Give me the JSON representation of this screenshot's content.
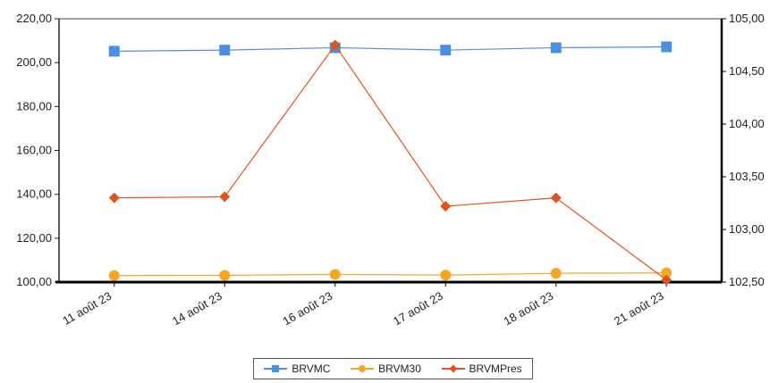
{
  "chart_data": {
    "type": "line",
    "categories": [
      "11 août 23",
      "14 août 23",
      "16 août 23",
      "17 août 23",
      "18 août 23",
      "21 août 23"
    ],
    "y_left": {
      "ticks": [
        "100,00",
        "120,00",
        "140,00",
        "160,00",
        "180,00",
        "200,00",
        "220,00"
      ],
      "ylim": [
        100,
        220
      ]
    },
    "y_right": {
      "ticks": [
        "102,50",
        "103,00",
        "103,50",
        "104,00",
        "104,50",
        "105,00"
      ],
      "ylim": [
        102.5,
        105
      ]
    },
    "series": [
      {
        "name": "BRVMC",
        "axis": "left",
        "marker": "square",
        "color": "#4a90e2",
        "values": [
          205.2,
          205.7,
          206.8,
          205.7,
          206.8,
          207.2
        ]
      },
      {
        "name": "BRVM30",
        "axis": "left",
        "marker": "circle",
        "color": "#f5a623",
        "values": [
          103.0,
          103.1,
          103.5,
          103.2,
          104.0,
          104.2
        ]
      },
      {
        "name": "BRVMPres",
        "axis": "right",
        "marker": "diamond",
        "color": "#e0531e",
        "values": [
          103.3,
          103.31,
          104.75,
          103.22,
          103.3,
          102.52
        ]
      }
    ],
    "legend_position": "bottom",
    "grid": false
  }
}
